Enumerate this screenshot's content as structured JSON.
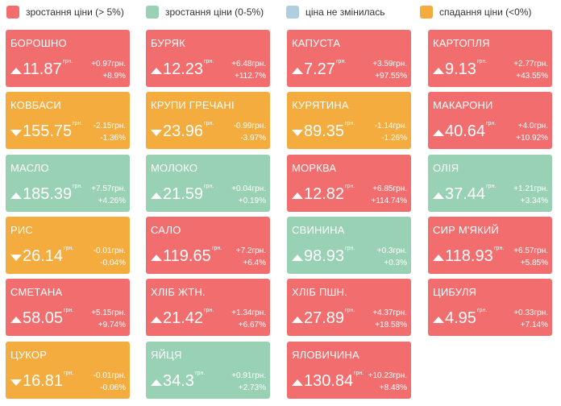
{
  "colors": {
    "rise_over_5": "#f26e6e",
    "rise_0_5": "#99d1b4",
    "unchanged": "#b1cde2",
    "fall": "#f4ac3f"
  },
  "legend": [
    {
      "label": "зростання ціни (> 5%)",
      "color": "#f26e6e"
    },
    {
      "label": "зростання ціни (0-5%)",
      "color": "#99d1b4"
    },
    {
      "label": "ціна не змінилась",
      "color": "#b1cde2"
    },
    {
      "label": "спадання ціни (<0%)",
      "color": "#f4ac3f"
    }
  ],
  "unit": "грн.",
  "tiles": [
    {
      "name": "БОРОШНО",
      "price": "11.87",
      "change": "+0.97грн.",
      "percent": "+8.9%",
      "direction": "up",
      "color": "#f26e6e"
    },
    {
      "name": "БУРЯК",
      "price": "12.23",
      "change": "+6.48грн.",
      "percent": "+112.7%",
      "direction": "up",
      "color": "#f26e6e"
    },
    {
      "name": "КАПУСТА",
      "price": "7.27",
      "change": "+3.59грн.",
      "percent": "+97.55%",
      "direction": "up",
      "color": "#f26e6e"
    },
    {
      "name": "КАРТОПЛЯ",
      "price": "9.13",
      "change": "+2.77грн.",
      "percent": "+43.55%",
      "direction": "up",
      "color": "#f26e6e"
    },
    {
      "name": "КОВБАСИ",
      "price": "155.75",
      "change": "-2.15грн.",
      "percent": "-1.36%",
      "direction": "down",
      "color": "#f4ac3f"
    },
    {
      "name": "КРУПИ ГРЕЧАНІ",
      "price": "23.96",
      "change": "-0.99грн.",
      "percent": "-3.97%",
      "direction": "down",
      "color": "#f4ac3f"
    },
    {
      "name": "КУРЯТИНА",
      "price": "89.35",
      "change": "-1.14грн.",
      "percent": "-1.26%",
      "direction": "down",
      "color": "#f4ac3f"
    },
    {
      "name": "МАКАРОНИ",
      "price": "40.64",
      "change": "+4.0грн.",
      "percent": "+10.92%",
      "direction": "up",
      "color": "#f26e6e"
    },
    {
      "name": "МАСЛО",
      "price": "185.39",
      "change": "+7.57грн.",
      "percent": "+4.26%",
      "direction": "up",
      "color": "#99d1b4"
    },
    {
      "name": "МОЛОКО",
      "price": "21.59",
      "change": "+0.04грн.",
      "percent": "+0.19%",
      "direction": "up",
      "color": "#99d1b4"
    },
    {
      "name": "МОРКВА",
      "price": "12.82",
      "change": "+6.85грн.",
      "percent": "+114.74%",
      "direction": "up",
      "color": "#f26e6e"
    },
    {
      "name": "ОЛІЯ",
      "price": "37.44",
      "change": "+1.21грн.",
      "percent": "+3.34%",
      "direction": "up",
      "color": "#99d1b4"
    },
    {
      "name": "РИС",
      "price": "26.14",
      "change": "-0.01грн.",
      "percent": "-0.04%",
      "direction": "down",
      "color": "#f4ac3f"
    },
    {
      "name": "САЛО",
      "price": "119.65",
      "change": "+7.2грн.",
      "percent": "+6.4%",
      "direction": "up",
      "color": "#f26e6e"
    },
    {
      "name": "СВИНИНА",
      "price": "98.93",
      "change": "+0.3грн.",
      "percent": "+0.3%",
      "direction": "up",
      "color": "#99d1b4"
    },
    {
      "name": "СИР М'ЯКИЙ",
      "price": "118.93",
      "change": "+6.57грн.",
      "percent": "+5.85%",
      "direction": "up",
      "color": "#f26e6e"
    },
    {
      "name": "СМЕТАНА",
      "price": "58.05",
      "change": "+5.15грн.",
      "percent": "+9.74%",
      "direction": "up",
      "color": "#f26e6e"
    },
    {
      "name": "ХЛІБ ЖТН.",
      "price": "21.42",
      "change": "+1.34грн.",
      "percent": "+6.67%",
      "direction": "up",
      "color": "#f26e6e"
    },
    {
      "name": "ХЛІБ ПШН.",
      "price": "27.89",
      "change": "+4.37грн.",
      "percent": "+18.58%",
      "direction": "up",
      "color": "#f26e6e"
    },
    {
      "name": "ЦИБУЛЯ",
      "price": "4.95",
      "change": "+0.33грн.",
      "percent": "+7.14%",
      "direction": "up",
      "color": "#f26e6e"
    },
    {
      "name": "ЦУКОР",
      "price": "16.81",
      "change": "-0.01грн.",
      "percent": "-0.06%",
      "direction": "down",
      "color": "#f4ac3f"
    },
    {
      "name": "ЯЙЦЯ",
      "price": "34.3",
      "change": "+0.91грн.",
      "percent": "+2.73%",
      "direction": "up",
      "color": "#99d1b4"
    },
    {
      "name": "ЯЛОВИЧИНА",
      "price": "130.84",
      "change": "+10.23грн.",
      "percent": "+8.48%",
      "direction": "up",
      "color": "#f26e6e"
    }
  ]
}
